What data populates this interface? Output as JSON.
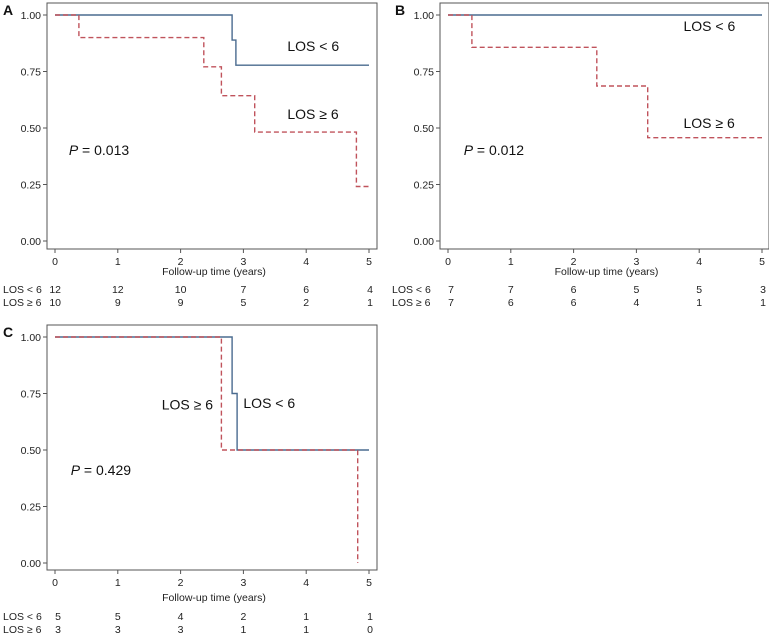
{
  "figure": {
    "colors": {
      "solid": "#4a6b8f",
      "dashed": "#c0535c",
      "axis": "#555555",
      "text": "#111111"
    }
  },
  "chart_data": [
    {
      "type": "line",
      "panel_label": "A",
      "xlabel": "Follow-up time (years)",
      "ylabel": "",
      "xlim": [
        0,
        5
      ],
      "ylim": [
        0,
        1
      ],
      "x_ticks": [
        0,
        1,
        2,
        3,
        4,
        5
      ],
      "y_ticks": [
        "0.00",
        "0.25",
        "0.50",
        "0.75",
        "1.00"
      ],
      "series": [
        {
          "name": "LOS < 6",
          "style": "solid",
          "steps": [
            [
              0,
              1.0
            ],
            [
              2.82,
              1.0
            ],
            [
              2.82,
              0.889
            ],
            [
              2.88,
              0.889
            ],
            [
              2.88,
              0.778
            ],
            [
              5.0,
              0.778
            ]
          ]
        },
        {
          "name": "LOS ≥ 6",
          "style": "dashed",
          "steps": [
            [
              0,
              1.0
            ],
            [
              0.38,
              1.0
            ],
            [
              0.38,
              0.9
            ],
            [
              2.37,
              0.9
            ],
            [
              2.37,
              0.771
            ],
            [
              2.65,
              0.771
            ],
            [
              2.65,
              0.643
            ],
            [
              3.18,
              0.643
            ],
            [
              3.18,
              0.482
            ],
            [
              4.8,
              0.482
            ],
            [
              4.8,
              0.241
            ],
            [
              5.0,
              0.241
            ]
          ]
        }
      ],
      "annotations": [
        {
          "text": "LOS < 6",
          "x": 3.7,
          "y": 0.84
        },
        {
          "text": "LOS ≥ 6",
          "x": 3.7,
          "y": 0.54
        }
      ],
      "p_value": {
        "prefix": "P",
        "text": " = 0.013",
        "x": 0.22,
        "y": 0.38
      },
      "risk_table": {
        "x_positions": [
          0,
          1,
          2,
          3,
          4,
          5
        ],
        "rows": [
          {
            "label": "LOS < 6",
            "values": [
              "12",
              "12",
              "10",
              "7",
              "6",
              "4"
            ]
          },
          {
            "label": "LOS ≥ 6",
            "values": [
              "10",
              "9",
              "9",
              "5",
              "2",
              "1"
            ]
          }
        ]
      }
    },
    {
      "type": "line",
      "panel_label": "B",
      "xlabel": "Follow-up time (years)",
      "ylabel": "",
      "xlim": [
        0,
        5
      ],
      "ylim": [
        0,
        1
      ],
      "x_ticks": [
        0,
        1,
        2,
        3,
        4,
        5
      ],
      "y_ticks": [
        "0.00",
        "0.25",
        "0.50",
        "0.75",
        "1.00"
      ],
      "series": [
        {
          "name": "LOS < 6",
          "style": "solid",
          "steps": [
            [
              0,
              1.0
            ],
            [
              5.0,
              1.0
            ]
          ]
        },
        {
          "name": "LOS ≥ 6",
          "style": "dashed",
          "steps": [
            [
              0,
              1.0
            ],
            [
              0.38,
              1.0
            ],
            [
              0.38,
              0.857
            ],
            [
              2.37,
              0.857
            ],
            [
              2.37,
              0.686
            ],
            [
              3.18,
              0.686
            ],
            [
              3.18,
              0.457
            ],
            [
              5.0,
              0.457
            ]
          ]
        }
      ],
      "annotations": [
        {
          "text": "LOS < 6",
          "x": 3.75,
          "y": 0.93
        },
        {
          "text": "LOS ≥ 6",
          "x": 3.75,
          "y": 0.5
        }
      ],
      "p_value": {
        "prefix": "P",
        "text": " = 0.012",
        "x": 0.25,
        "y": 0.38
      },
      "risk_table": {
        "x_positions": [
          0,
          1,
          2,
          3,
          4,
          5
        ],
        "rows": [
          {
            "label": "LOS < 6",
            "values": [
              "7",
              "7",
              "6",
              "5",
              "5",
              "3"
            ]
          },
          {
            "label": "LOS ≥ 6",
            "values": [
              "7",
              "6",
              "6",
              "4",
              "1",
              "1"
            ]
          }
        ]
      }
    },
    {
      "type": "line",
      "panel_label": "C",
      "xlabel": "Follow-up time (years)",
      "ylabel": "",
      "xlim": [
        0,
        5
      ],
      "ylim": [
        0,
        1
      ],
      "x_ticks": [
        0,
        1,
        2,
        3,
        4,
        5
      ],
      "y_ticks": [
        "0.00",
        "0.25",
        "0.50",
        "0.75",
        "1.00"
      ],
      "series": [
        {
          "name": "LOS < 6",
          "style": "solid",
          "steps": [
            [
              0,
              1.0
            ],
            [
              2.82,
              1.0
            ],
            [
              2.82,
              0.75
            ],
            [
              2.9,
              0.75
            ],
            [
              2.9,
              0.5
            ],
            [
              5.0,
              0.5
            ]
          ]
        },
        {
          "name": "LOS ≥ 6",
          "style": "dashed",
          "steps": [
            [
              0,
              1.0
            ],
            [
              2.65,
              1.0
            ],
            [
              2.65,
              0.5
            ],
            [
              4.82,
              0.5
            ],
            [
              4.82,
              0.0
            ]
          ]
        }
      ],
      "annotations": [
        {
          "text": "LOS ≥ 6",
          "x": 1.7,
          "y": 0.68
        },
        {
          "text": "LOS < 6",
          "x": 3.0,
          "y": 0.685
        }
      ],
      "p_value": {
        "prefix": "P",
        "text": " = 0.429",
        "x": 0.25,
        "y": 0.39
      },
      "risk_table": {
        "x_positions": [
          0,
          1,
          2,
          3,
          4,
          5
        ],
        "rows": [
          {
            "label": "LOS < 6",
            "values": [
              "5",
              "5",
              "4",
              "2",
              "1",
              "1"
            ]
          },
          {
            "label": "LOS ≥ 6",
            "values": [
              "3",
              "3",
              "3",
              "1",
              "1",
              "0"
            ]
          }
        ]
      }
    }
  ]
}
